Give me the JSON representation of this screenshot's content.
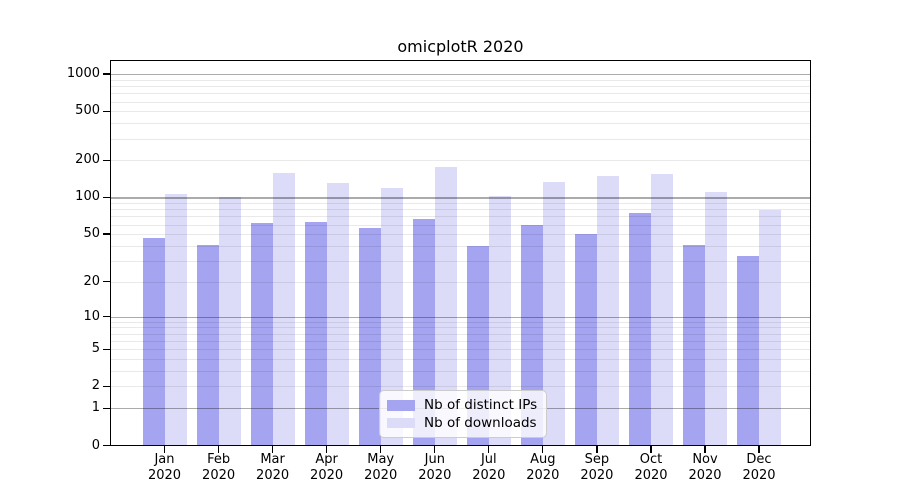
{
  "chart_data": {
    "type": "bar",
    "title": "omicplotR 2020",
    "x_ticks": [
      {
        "month": "Jan",
        "year": "2020"
      },
      {
        "month": "Feb",
        "year": "2020"
      },
      {
        "month": "Mar",
        "year": "2020"
      },
      {
        "month": "Apr",
        "year": "2020"
      },
      {
        "month": "May",
        "year": "2020"
      },
      {
        "month": "Jun",
        "year": "2020"
      },
      {
        "month": "Jul",
        "year": "2020"
      },
      {
        "month": "Aug",
        "year": "2020"
      },
      {
        "month": "Sep",
        "year": "2020"
      },
      {
        "month": "Oct",
        "year": "2020"
      },
      {
        "month": "Nov",
        "year": "2020"
      },
      {
        "month": "Dec",
        "year": "2020"
      }
    ],
    "series": [
      {
        "name": "Nb of distinct IPs",
        "color": "#a4a4f0",
        "values": [
          47,
          41,
          62,
          63,
          57,
          67,
          40,
          60,
          51,
          75,
          41,
          33
        ]
      },
      {
        "name": "Nb of downloads",
        "color": "#dcdcf9",
        "values": [
          108,
          102,
          161,
          133,
          121,
          177,
          104,
          136,
          150,
          156,
          112,
          80
        ]
      }
    ],
    "y_axis": {
      "scale": "log10(1+value)",
      "ticks": [
        0,
        1,
        2,
        5,
        10,
        20,
        50,
        100,
        200,
        500,
        1000
      ],
      "range": [
        0,
        1300
      ]
    },
    "grid": {
      "major": [
        1,
        10,
        100,
        1000
      ],
      "minor": [
        2,
        3,
        4,
        5,
        6,
        7,
        8,
        9,
        20,
        30,
        40,
        50,
        60,
        70,
        80,
        90,
        200,
        300,
        400,
        500,
        600,
        700,
        800,
        900
      ]
    },
    "legend": {
      "position": "lower-center"
    },
    "colors": {
      "background": "#ffffff",
      "spine": "#000000",
      "major_grid": "#b0b0b0",
      "minor_grid": "#e8e8e8",
      "text": "#000000"
    }
  }
}
